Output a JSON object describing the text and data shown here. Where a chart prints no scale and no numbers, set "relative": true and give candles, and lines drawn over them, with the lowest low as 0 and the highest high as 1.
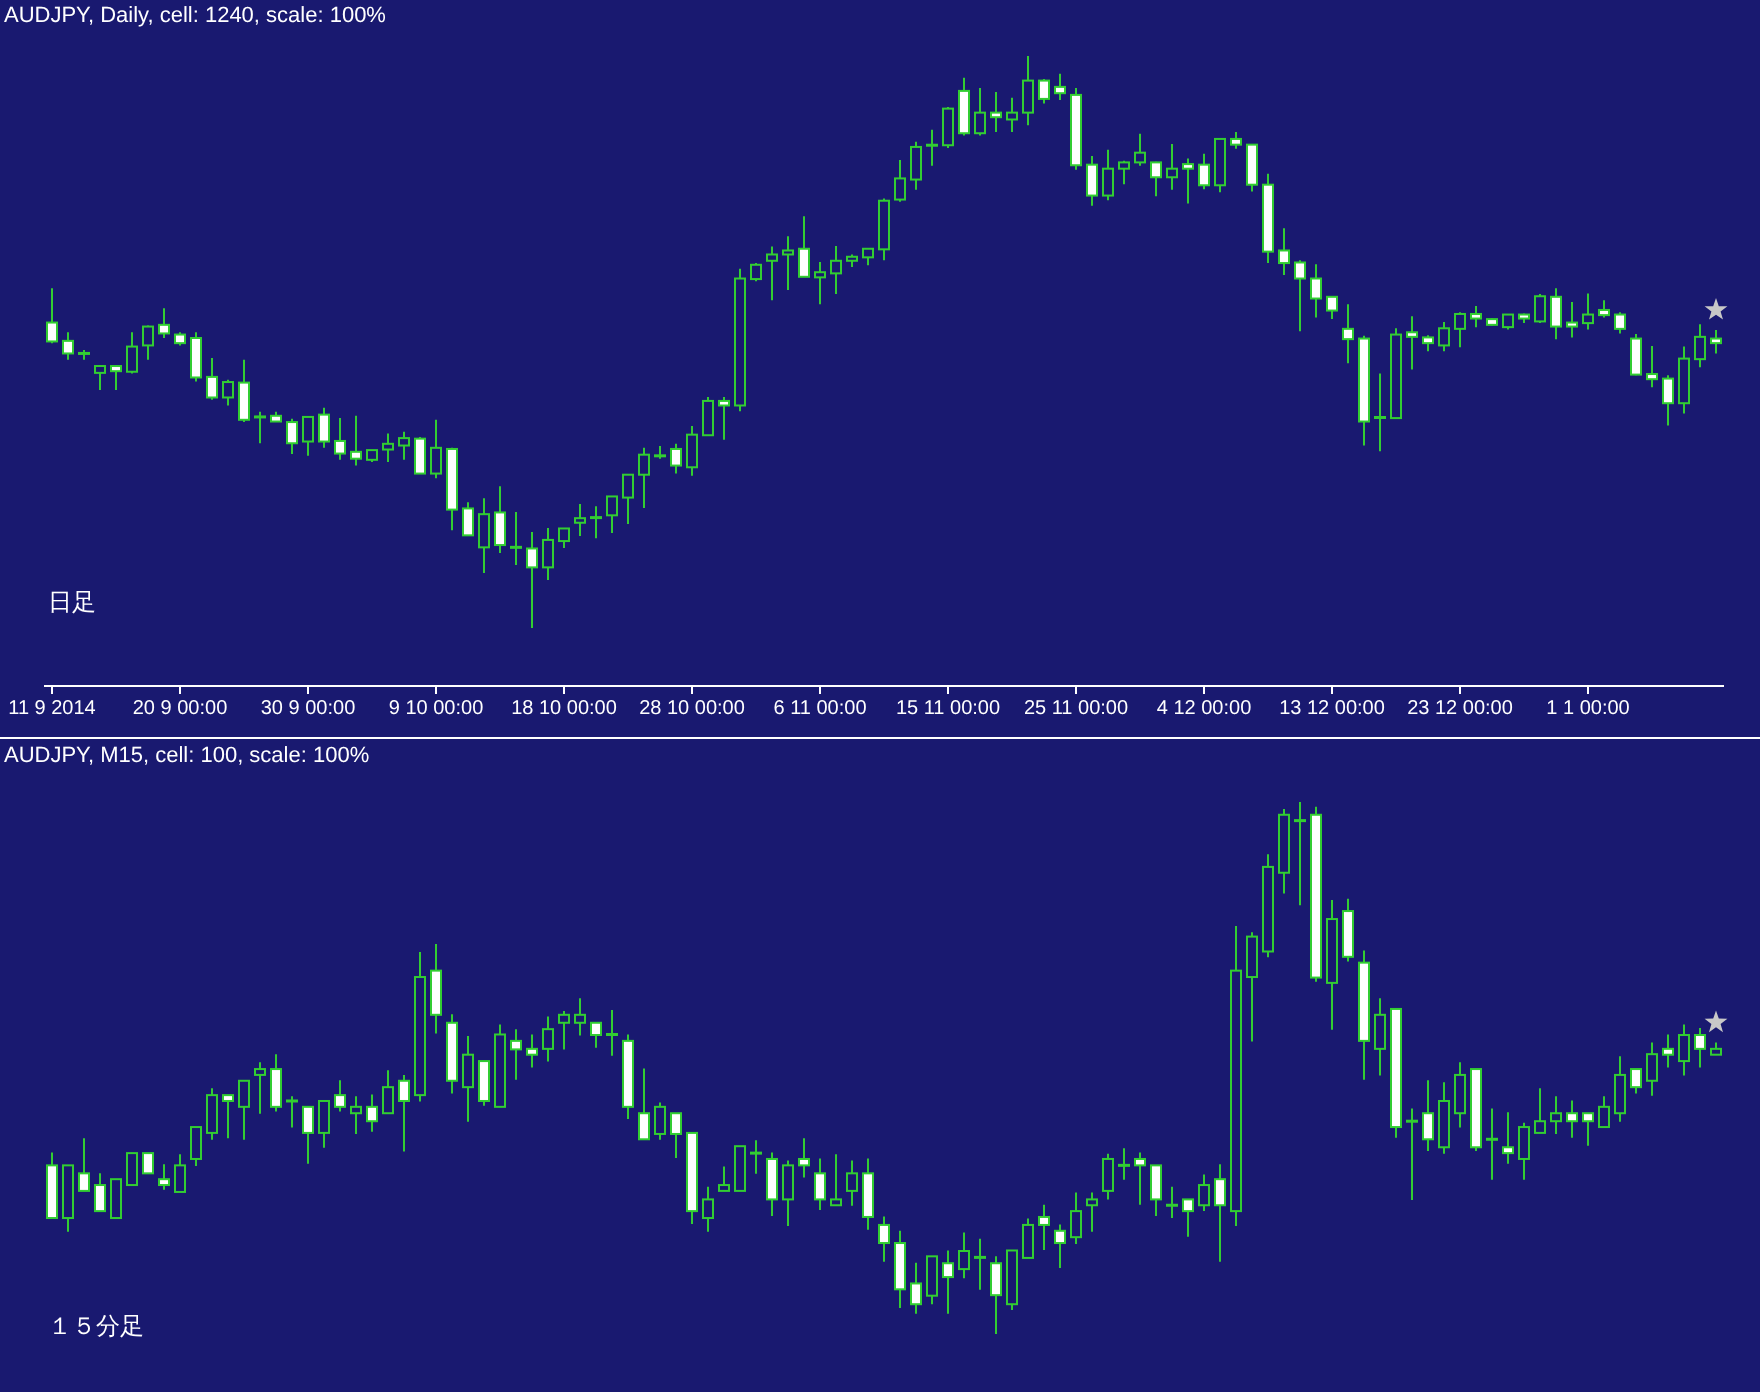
{
  "chart_data": [
    {
      "type": "candlestick",
      "title": "AUDJPY, Daily, cell: 1240, scale: 100%",
      "relative": true,
      "color": "#32cd32",
      "annotations": [
        "日足"
      ],
      "categories": [
        "11 9 2014",
        null,
        null,
        null,
        null,
        null,
        null,
        null,
        "20 9 00:00",
        null,
        null,
        null,
        null,
        null,
        null,
        null,
        "30 9 00:00",
        null,
        null,
        null,
        null,
        null,
        null,
        null,
        "9 10 00:00",
        null,
        null,
        null,
        null,
        null,
        null,
        null,
        "18 10 00:00",
        null,
        null,
        null,
        null,
        null,
        null,
        null,
        "28 10 00:00",
        null,
        null,
        null,
        null,
        null,
        null,
        null,
        "6 11 00:00",
        null,
        null,
        null,
        null,
        null,
        null,
        null,
        "15 11 00:00",
        null,
        null,
        null,
        null,
        null,
        null,
        null,
        "25 11 00:00",
        null,
        null,
        null,
        null,
        null,
        null,
        null,
        "4 12 00:00",
        null,
        null,
        null,
        null,
        null,
        null,
        null,
        "13 12 00:00",
        null,
        null,
        null,
        null,
        null,
        null,
        null,
        "23 12 00:00",
        null,
        null,
        null,
        null,
        null,
        null,
        null,
        "1 1 00:00",
        null,
        null,
        null,
        null,
        null,
        null,
        null,
        null
      ],
      "ohlc": [
        [
          0.534,
          0.594,
          0.498,
          0.501
        ],
        [
          0.502,
          0.517,
          0.469,
          0.48
        ],
        [
          0.48,
          0.486,
          0.469,
          0.48
        ],
        [
          0.446,
          0.46,
          0.416,
          0.458
        ],
        [
          0.458,
          0.46,
          0.416,
          0.449
        ],
        [
          0.448,
          0.517,
          0.445,
          0.492
        ],
        [
          0.494,
          0.529,
          0.469,
          0.527
        ],
        [
          0.53,
          0.559,
          0.507,
          0.515
        ],
        [
          0.513,
          0.517,
          0.494,
          0.498
        ],
        [
          0.507,
          0.517,
          0.431,
          0.438
        ],
        [
          0.439,
          0.472,
          0.399,
          0.403
        ],
        [
          0.403,
          0.434,
          0.389,
          0.43
        ],
        [
          0.429,
          0.469,
          0.36,
          0.364
        ],
        [
          0.369,
          0.378,
          0.323,
          0.369
        ],
        [
          0.371,
          0.378,
          0.361,
          0.361
        ],
        [
          0.36,
          0.366,
          0.304,
          0.323
        ],
        [
          0.326,
          0.369,
          0.301,
          0.369
        ],
        [
          0.373,
          0.385,
          0.315,
          0.326
        ],
        [
          0.327,
          0.367,
          0.294,
          0.305
        ],
        [
          0.308,
          0.371,
          0.284,
          0.296
        ],
        [
          0.294,
          0.311,
          0.29,
          0.311
        ],
        [
          0.312,
          0.34,
          0.29,
          0.322
        ],
        [
          0.319,
          0.343,
          0.294,
          0.332
        ],
        [
          0.331,
          0.334,
          0.27,
          0.27
        ],
        [
          0.27,
          0.364,
          0.262,
          0.315
        ],
        [
          0.313,
          0.315,
          0.171,
          0.207
        ],
        [
          0.209,
          0.22,
          0.162,
          0.162
        ],
        [
          0.141,
          0.227,
          0.096,
          0.199
        ],
        [
          0.202,
          0.248,
          0.131,
          0.145
        ],
        [
          0.141,
          0.203,
          0.11,
          0.141
        ],
        [
          0.139,
          0.168,
          0.0,
          0.106
        ],
        [
          0.106,
          0.175,
          0.084,
          0.154
        ],
        [
          0.152,
          0.175,
          0.14,
          0.174
        ],
        [
          0.184,
          0.217,
          0.161,
          0.192
        ],
        [
          0.193,
          0.213,
          0.157,
          0.193
        ],
        [
          0.197,
          0.23,
          0.166,
          0.23
        ],
        [
          0.228,
          0.268,
          0.182,
          0.268
        ],
        [
          0.268,
          0.315,
          0.21,
          0.303
        ],
        [
          0.301,
          0.318,
          0.296,
          0.301
        ],
        [
          0.313,
          0.322,
          0.27,
          0.284
        ],
        [
          0.281,
          0.353,
          0.266,
          0.338
        ],
        [
          0.337,
          0.404,
          0.337,
          0.397
        ],
        [
          0.397,
          0.404,
          0.329,
          0.389
        ],
        [
          0.389,
          0.628,
          0.379,
          0.611
        ],
        [
          0.61,
          0.638,
          0.606,
          0.635
        ],
        [
          0.642,
          0.667,
          0.573,
          0.653
        ],
        [
          0.653,
          0.685,
          0.591,
          0.66
        ],
        [
          0.663,
          0.72,
          0.614,
          0.614
        ],
        [
          0.613,
          0.64,
          0.566,
          0.622
        ],
        [
          0.62,
          0.668,
          0.584,
          0.642
        ],
        [
          0.642,
          0.653,
          0.631,
          0.649
        ],
        [
          0.648,
          0.664,
          0.634,
          0.663
        ],
        [
          0.662,
          0.751,
          0.643,
          0.747
        ],
        [
          0.749,
          0.818,
          0.745,
          0.786
        ],
        [
          0.784,
          0.85,
          0.766,
          0.841
        ],
        [
          0.844,
          0.871,
          0.808,
          0.844
        ],
        [
          0.844,
          0.911,
          0.839,
          0.908
        ],
        [
          0.939,
          0.962,
          0.861,
          0.865
        ],
        [
          0.865,
          0.944,
          0.861,
          0.901
        ],
        [
          0.901,
          0.937,
          0.867,
          0.893
        ],
        [
          0.889,
          0.927,
          0.867,
          0.901
        ],
        [
          0.901,
          1.0,
          0.879,
          0.957
        ],
        [
          0.957,
          0.96,
          0.917,
          0.925
        ],
        [
          0.946,
          0.969,
          0.923,
          0.935
        ],
        [
          0.932,
          0.944,
          0.801,
          0.809
        ],
        [
          0.81,
          0.825,
          0.738,
          0.756
        ],
        [
          0.756,
          0.836,
          0.748,
          0.803
        ],
        [
          0.803,
          0.817,
          0.776,
          0.814
        ],
        [
          0.814,
          0.864,
          0.808,
          0.831
        ],
        [
          0.814,
          0.815,
          0.755,
          0.788
        ],
        [
          0.788,
          0.846,
          0.766,
          0.803
        ],
        [
          0.811,
          0.821,
          0.742,
          0.803
        ],
        [
          0.81,
          0.829,
          0.767,
          0.774
        ],
        [
          0.774,
          0.855,
          0.762,
          0.855
        ],
        [
          0.855,
          0.867,
          0.838,
          0.845
        ],
        [
          0.845,
          0.846,
          0.763,
          0.775
        ],
        [
          0.775,
          0.794,
          0.638,
          0.658
        ],
        [
          0.66,
          0.699,
          0.617,
          0.638
        ],
        [
          0.639,
          0.643,
          0.519,
          0.611
        ],
        [
          0.611,
          0.636,
          0.543,
          0.576
        ],
        [
          0.579,
          0.58,
          0.54,
          0.555
        ],
        [
          0.523,
          0.566,
          0.463,
          0.505
        ],
        [
          0.506,
          0.511,
          0.319,
          0.361
        ],
        [
          0.368,
          0.445,
          0.309,
          0.368
        ],
        [
          0.367,
          0.524,
          0.366,
          0.513
        ],
        [
          0.517,
          0.545,
          0.452,
          0.509
        ],
        [
          0.508,
          0.512,
          0.484,
          0.498
        ],
        [
          0.494,
          0.535,
          0.484,
          0.524
        ],
        [
          0.523,
          0.552,
          0.491,
          0.549
        ],
        [
          0.549,
          0.563,
          0.526,
          0.541
        ],
        [
          0.54,
          0.541,
          0.529,
          0.53
        ],
        [
          0.526,
          0.549,
          0.522,
          0.548
        ],
        [
          0.548,
          0.55,
          0.533,
          0.541
        ],
        [
          0.536,
          0.584,
          0.533,
          0.58
        ],
        [
          0.579,
          0.594,
          0.505,
          0.527
        ],
        [
          0.534,
          0.57,
          0.508,
          0.527
        ],
        [
          0.533,
          0.585,
          0.522,
          0.548
        ],
        [
          0.556,
          0.573,
          0.543,
          0.547
        ],
        [
          0.548,
          0.552,
          0.515,
          0.523
        ],
        [
          0.506,
          0.514,
          0.442,
          0.443
        ],
        [
          0.444,
          0.493,
          0.421,
          0.435
        ],
        [
          0.436,
          0.442,
          0.354,
          0.393
        ],
        [
          0.393,
          0.492,
          0.375,
          0.471
        ],
        [
          0.47,
          0.531,
          0.456,
          0.509
        ],
        [
          0.506,
          0.521,
          0.48,
          0.498
        ]
      ]
    },
    {
      "type": "candlestick",
      "title": "AUDJPY, M15, cell: 100, scale: 100%",
      "relative": true,
      "color": "#32cd32",
      "annotations": [
        "１５分足"
      ],
      "categories": [
        null,
        null,
        null,
        null,
        null,
        null,
        null,
        null,
        null,
        null,
        null,
        null,
        null,
        null,
        null,
        null,
        null,
        null,
        null,
        null,
        null,
        null,
        null,
        null,
        null,
        null,
        null,
        null,
        null,
        null,
        null,
        null,
        null,
        null,
        null,
        null,
        null,
        null,
        null,
        null,
        null,
        null,
        null,
        null,
        null,
        null,
        null,
        null,
        null,
        null,
        null,
        null,
        null,
        null,
        null,
        null,
        null,
        null,
        null,
        null,
        null,
        null,
        null,
        null,
        null,
        null,
        null,
        null,
        null,
        null,
        null,
        null,
        null,
        null,
        null,
        null,
        null,
        null,
        null,
        null,
        null,
        null,
        null,
        null,
        null,
        null,
        null,
        null,
        null,
        null,
        null,
        null,
        null,
        null,
        null,
        null,
        null,
        null,
        null,
        null,
        null,
        null,
        null,
        null,
        null
      ],
      "ohlc": [
        [
          0.317,
          0.341,
          0.218,
          0.218
        ],
        [
          0.218,
          0.317,
          0.192,
          0.317
        ],
        [
          0.302,
          0.368,
          0.269,
          0.269
        ],
        [
          0.28,
          0.302,
          0.231,
          0.231
        ],
        [
          0.218,
          0.291,
          0.218,
          0.291
        ],
        [
          0.28,
          0.34,
          0.28,
          0.34
        ],
        [
          0.34,
          0.34,
          0.302,
          0.302
        ],
        [
          0.291,
          0.319,
          0.271,
          0.28
        ],
        [
          0.267,
          0.338,
          0.267,
          0.317
        ],
        [
          0.329,
          0.389,
          0.316,
          0.389
        ],
        [
          0.378,
          0.462,
          0.365,
          0.449
        ],
        [
          0.449,
          0.449,
          0.368,
          0.438
        ],
        [
          0.427,
          0.476,
          0.365,
          0.476
        ],
        [
          0.487,
          0.511,
          0.414,
          0.498
        ],
        [
          0.498,
          0.526,
          0.418,
          0.427
        ],
        [
          0.438,
          0.447,
          0.388,
          0.438
        ],
        [
          0.427,
          0.428,
          0.32,
          0.378
        ],
        [
          0.378,
          0.438,
          0.35,
          0.438
        ],
        [
          0.449,
          0.477,
          0.418,
          0.427
        ],
        [
          0.415,
          0.447,
          0.376,
          0.427
        ],
        [
          0.427,
          0.45,
          0.38,
          0.4
        ],
        [
          0.415,
          0.496,
          0.415,
          0.464
        ],
        [
          0.476,
          0.487,
          0.343,
          0.438
        ],
        [
          0.449,
          0.718,
          0.437,
          0.671
        ],
        [
          0.683,
          0.733,
          0.565,
          0.6
        ],
        [
          0.585,
          0.601,
          0.452,
          0.476
        ],
        [
          0.464,
          0.56,
          0.399,
          0.525
        ],
        [
          0.513,
          0.513,
          0.429,
          0.438
        ],
        [
          0.427,
          0.582,
          0.427,
          0.563
        ],
        [
          0.551,
          0.573,
          0.478,
          0.535
        ],
        [
          0.536,
          0.563,
          0.501,
          0.525
        ],
        [
          0.536,
          0.597,
          0.512,
          0.573
        ],
        [
          0.585,
          0.607,
          0.535,
          0.6
        ],
        [
          0.585,
          0.631,
          0.561,
          0.6
        ],
        [
          0.585,
          0.585,
          0.538,
          0.562
        ],
        [
          0.563,
          0.609,
          0.523,
          0.563
        ],
        [
          0.551,
          0.563,
          0.404,
          0.427
        ],
        [
          0.415,
          0.499,
          0.366,
          0.366
        ],
        [
          0.376,
          0.435,
          0.365,
          0.427
        ],
        [
          0.415,
          0.415,
          0.331,
          0.376
        ],
        [
          0.378,
          0.378,
          0.207,
          0.231
        ],
        [
          0.218,
          0.277,
          0.192,
          0.253
        ],
        [
          0.269,
          0.315,
          0.269,
          0.28
        ],
        [
          0.269,
          0.353,
          0.269,
          0.353
        ],
        [
          0.34,
          0.364,
          0.301,
          0.34
        ],
        [
          0.329,
          0.341,
          0.222,
          0.253
        ],
        [
          0.253,
          0.326,
          0.203,
          0.317
        ],
        [
          0.329,
          0.368,
          0.294,
          0.317
        ],
        [
          0.302,
          0.33,
          0.233,
          0.253
        ],
        [
          0.242,
          0.338,
          0.242,
          0.253
        ],
        [
          0.269,
          0.326,
          0.241,
          0.302
        ],
        [
          0.302,
          0.33,
          0.196,
          0.22
        ],
        [
          0.205,
          0.221,
          0.136,
          0.171
        ],
        [
          0.171,
          0.194,
          0.049,
          0.084
        ],
        [
          0.095,
          0.134,
          0.038,
          0.056
        ],
        [
          0.072,
          0.146,
          0.056,
          0.146
        ],
        [
          0.133,
          0.157,
          0.038,
          0.107
        ],
        [
          0.122,
          0.191,
          0.105,
          0.156
        ],
        [
          0.144,
          0.179,
          0.083,
          0.144
        ],
        [
          0.133,
          0.146,
          0.0,
          0.073
        ],
        [
          0.056,
          0.157,
          0.045,
          0.157
        ],
        [
          0.143,
          0.217,
          0.143,
          0.205
        ],
        [
          0.22,
          0.243,
          0.158,
          0.205
        ],
        [
          0.194,
          0.206,
          0.124,
          0.171
        ],
        [
          0.182,
          0.266,
          0.169,
          0.231
        ],
        [
          0.242,
          0.266,
          0.192,
          0.253
        ],
        [
          0.269,
          0.339,
          0.253,
          0.329
        ],
        [
          0.317,
          0.349,
          0.29,
          0.317
        ],
        [
          0.329,
          0.341,
          0.243,
          0.317
        ],
        [
          0.317,
          0.317,
          0.222,
          0.253
        ],
        [
          0.242,
          0.277,
          0.218,
          0.242
        ],
        [
          0.253,
          0.253,
          0.183,
          0.231
        ],
        [
          0.242,
          0.3,
          0.231,
          0.28
        ],
        [
          0.291,
          0.319,
          0.136,
          0.242
        ],
        [
          0.231,
          0.767,
          0.203,
          0.683
        ],
        [
          0.671,
          0.755,
          0.55,
          0.747
        ],
        [
          0.719,
          0.902,
          0.708,
          0.878
        ],
        [
          0.867,
          0.987,
          0.828,
          0.976
        ],
        [
          0.965,
          1.0,
          0.806,
          0.965
        ],
        [
          0.976,
          0.991,
          0.662,
          0.67
        ],
        [
          0.66,
          0.816,
          0.572,
          0.78
        ],
        [
          0.795,
          0.818,
          0.7,
          0.709
        ],
        [
          0.698,
          0.721,
          0.478,
          0.551
        ],
        [
          0.536,
          0.631,
          0.486,
          0.6
        ],
        [
          0.611,
          0.612,
          0.369,
          0.389
        ],
        [
          0.4,
          0.424,
          0.252,
          0.4
        ],
        [
          0.415,
          0.477,
          0.344,
          0.366
        ],
        [
          0.351,
          0.473,
          0.339,
          0.438
        ],
        [
          0.415,
          0.511,
          0.388,
          0.487
        ],
        [
          0.498,
          0.498,
          0.344,
          0.351
        ],
        [
          0.366,
          0.424,
          0.29,
          0.366
        ],
        [
          0.351,
          0.417,
          0.32,
          0.34
        ],
        [
          0.329,
          0.397,
          0.29,
          0.389
        ],
        [
          0.378,
          0.462,
          0.378,
          0.4
        ],
        [
          0.4,
          0.447,
          0.376,
          0.415
        ],
        [
          0.415,
          0.439,
          0.369,
          0.4
        ],
        [
          0.415,
          0.415,
          0.354,
          0.4
        ],
        [
          0.389,
          0.447,
          0.389,
          0.427
        ],
        [
          0.415,
          0.522,
          0.399,
          0.487
        ],
        [
          0.498,
          0.498,
          0.452,
          0.464
        ],
        [
          0.476,
          0.548,
          0.448,
          0.526
        ],
        [
          0.536,
          0.563,
          0.501,
          0.525
        ],
        [
          0.513,
          0.582,
          0.486,
          0.562
        ],
        [
          0.562,
          0.575,
          0.501,
          0.536
        ],
        [
          0.525,
          0.548,
          0.525,
          0.536
        ]
      ]
    }
  ]
}
